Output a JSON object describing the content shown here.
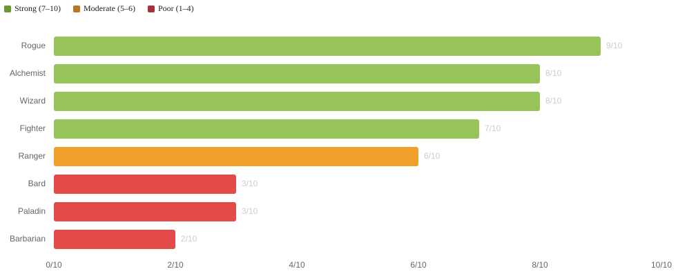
{
  "chart_data": {
    "type": "hbar",
    "legend": [
      {
        "name": "Strong (7–10)",
        "color": "#6a9a2e"
      },
      {
        "name": "Moderate (5–6)",
        "color": "#b87624"
      },
      {
        "name": "Poor (1–4)",
        "color": "#a8323a"
      }
    ],
    "categories": [
      "Rogue",
      "Alchemist",
      "Wizard",
      "Fighter",
      "Ranger",
      "Bard",
      "Paladin",
      "Barbarian"
    ],
    "values": [
      9,
      8,
      8,
      7,
      6,
      3,
      3,
      2
    ],
    "value_labels": [
      "9/10",
      "8/10",
      "8/10",
      "7/10",
      "6/10",
      "3/10",
      "3/10",
      "2/10"
    ],
    "colors": [
      "#97c459",
      "#97c459",
      "#97c459",
      "#97c459",
      "#f0a02a",
      "#e24b4a",
      "#e24b4a",
      "#e24b4a"
    ],
    "xlim": [
      0,
      10
    ],
    "xticks": [
      {
        "value": 0,
        "label": "0/10"
      },
      {
        "value": 2,
        "label": "2/10"
      },
      {
        "value": 4,
        "label": "4/10"
      },
      {
        "value": 6,
        "label": "6/10"
      },
      {
        "value": 8,
        "label": "8/10"
      },
      {
        "value": 10,
        "label": "10/10"
      }
    ]
  }
}
